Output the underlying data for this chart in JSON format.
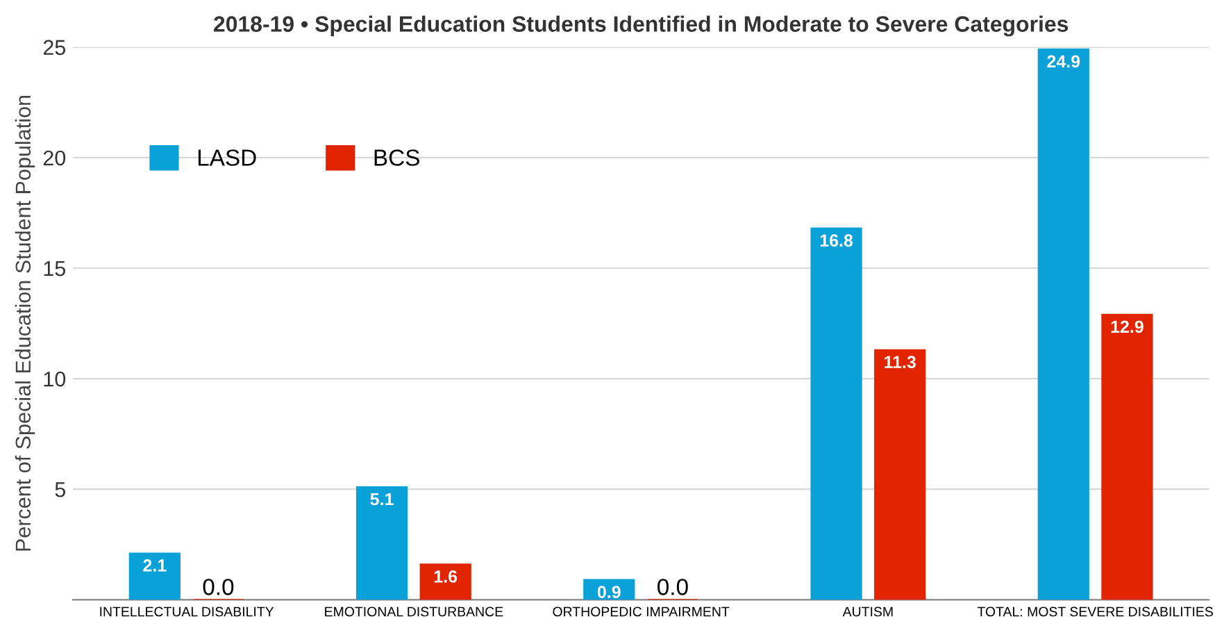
{
  "chart_data": {
    "type": "bar",
    "title": "2018-19 • Special Education Students Identified in Moderate to Severe Categories",
    "ylabel": "Percent of Special Education Student Population",
    "categories": [
      "INTELLECTUAL DISABILITY",
      "EMOTIONAL DISTURBANCE",
      "ORTHOPEDIC IMPAIRMENT",
      "AUTISM",
      "TOTAL: MOST SEVERE DISABILITIES"
    ],
    "series": [
      {
        "name": "LASD",
        "color": "#0aa0d8",
        "values": [
          2.1,
          5.1,
          0.9,
          16.8,
          24.9
        ],
        "value_labels": [
          "2.1",
          "5.1",
          "0.9",
          "16.8",
          "24.9"
        ]
      },
      {
        "name": "BCS",
        "color": "#e02500",
        "values": [
          0,
          1.6,
          0,
          11.3,
          12.9
        ],
        "value_labels": [
          "0.0",
          "1.6",
          "0.0",
          "11.3",
          "12.9"
        ]
      }
    ],
    "ylim": [
      0,
      25
    ],
    "yticks": [
      {
        "value": 0,
        "label": null
      },
      5,
      10,
      15,
      20,
      25
    ],
    "grid": "y",
    "legend": "top left"
  }
}
